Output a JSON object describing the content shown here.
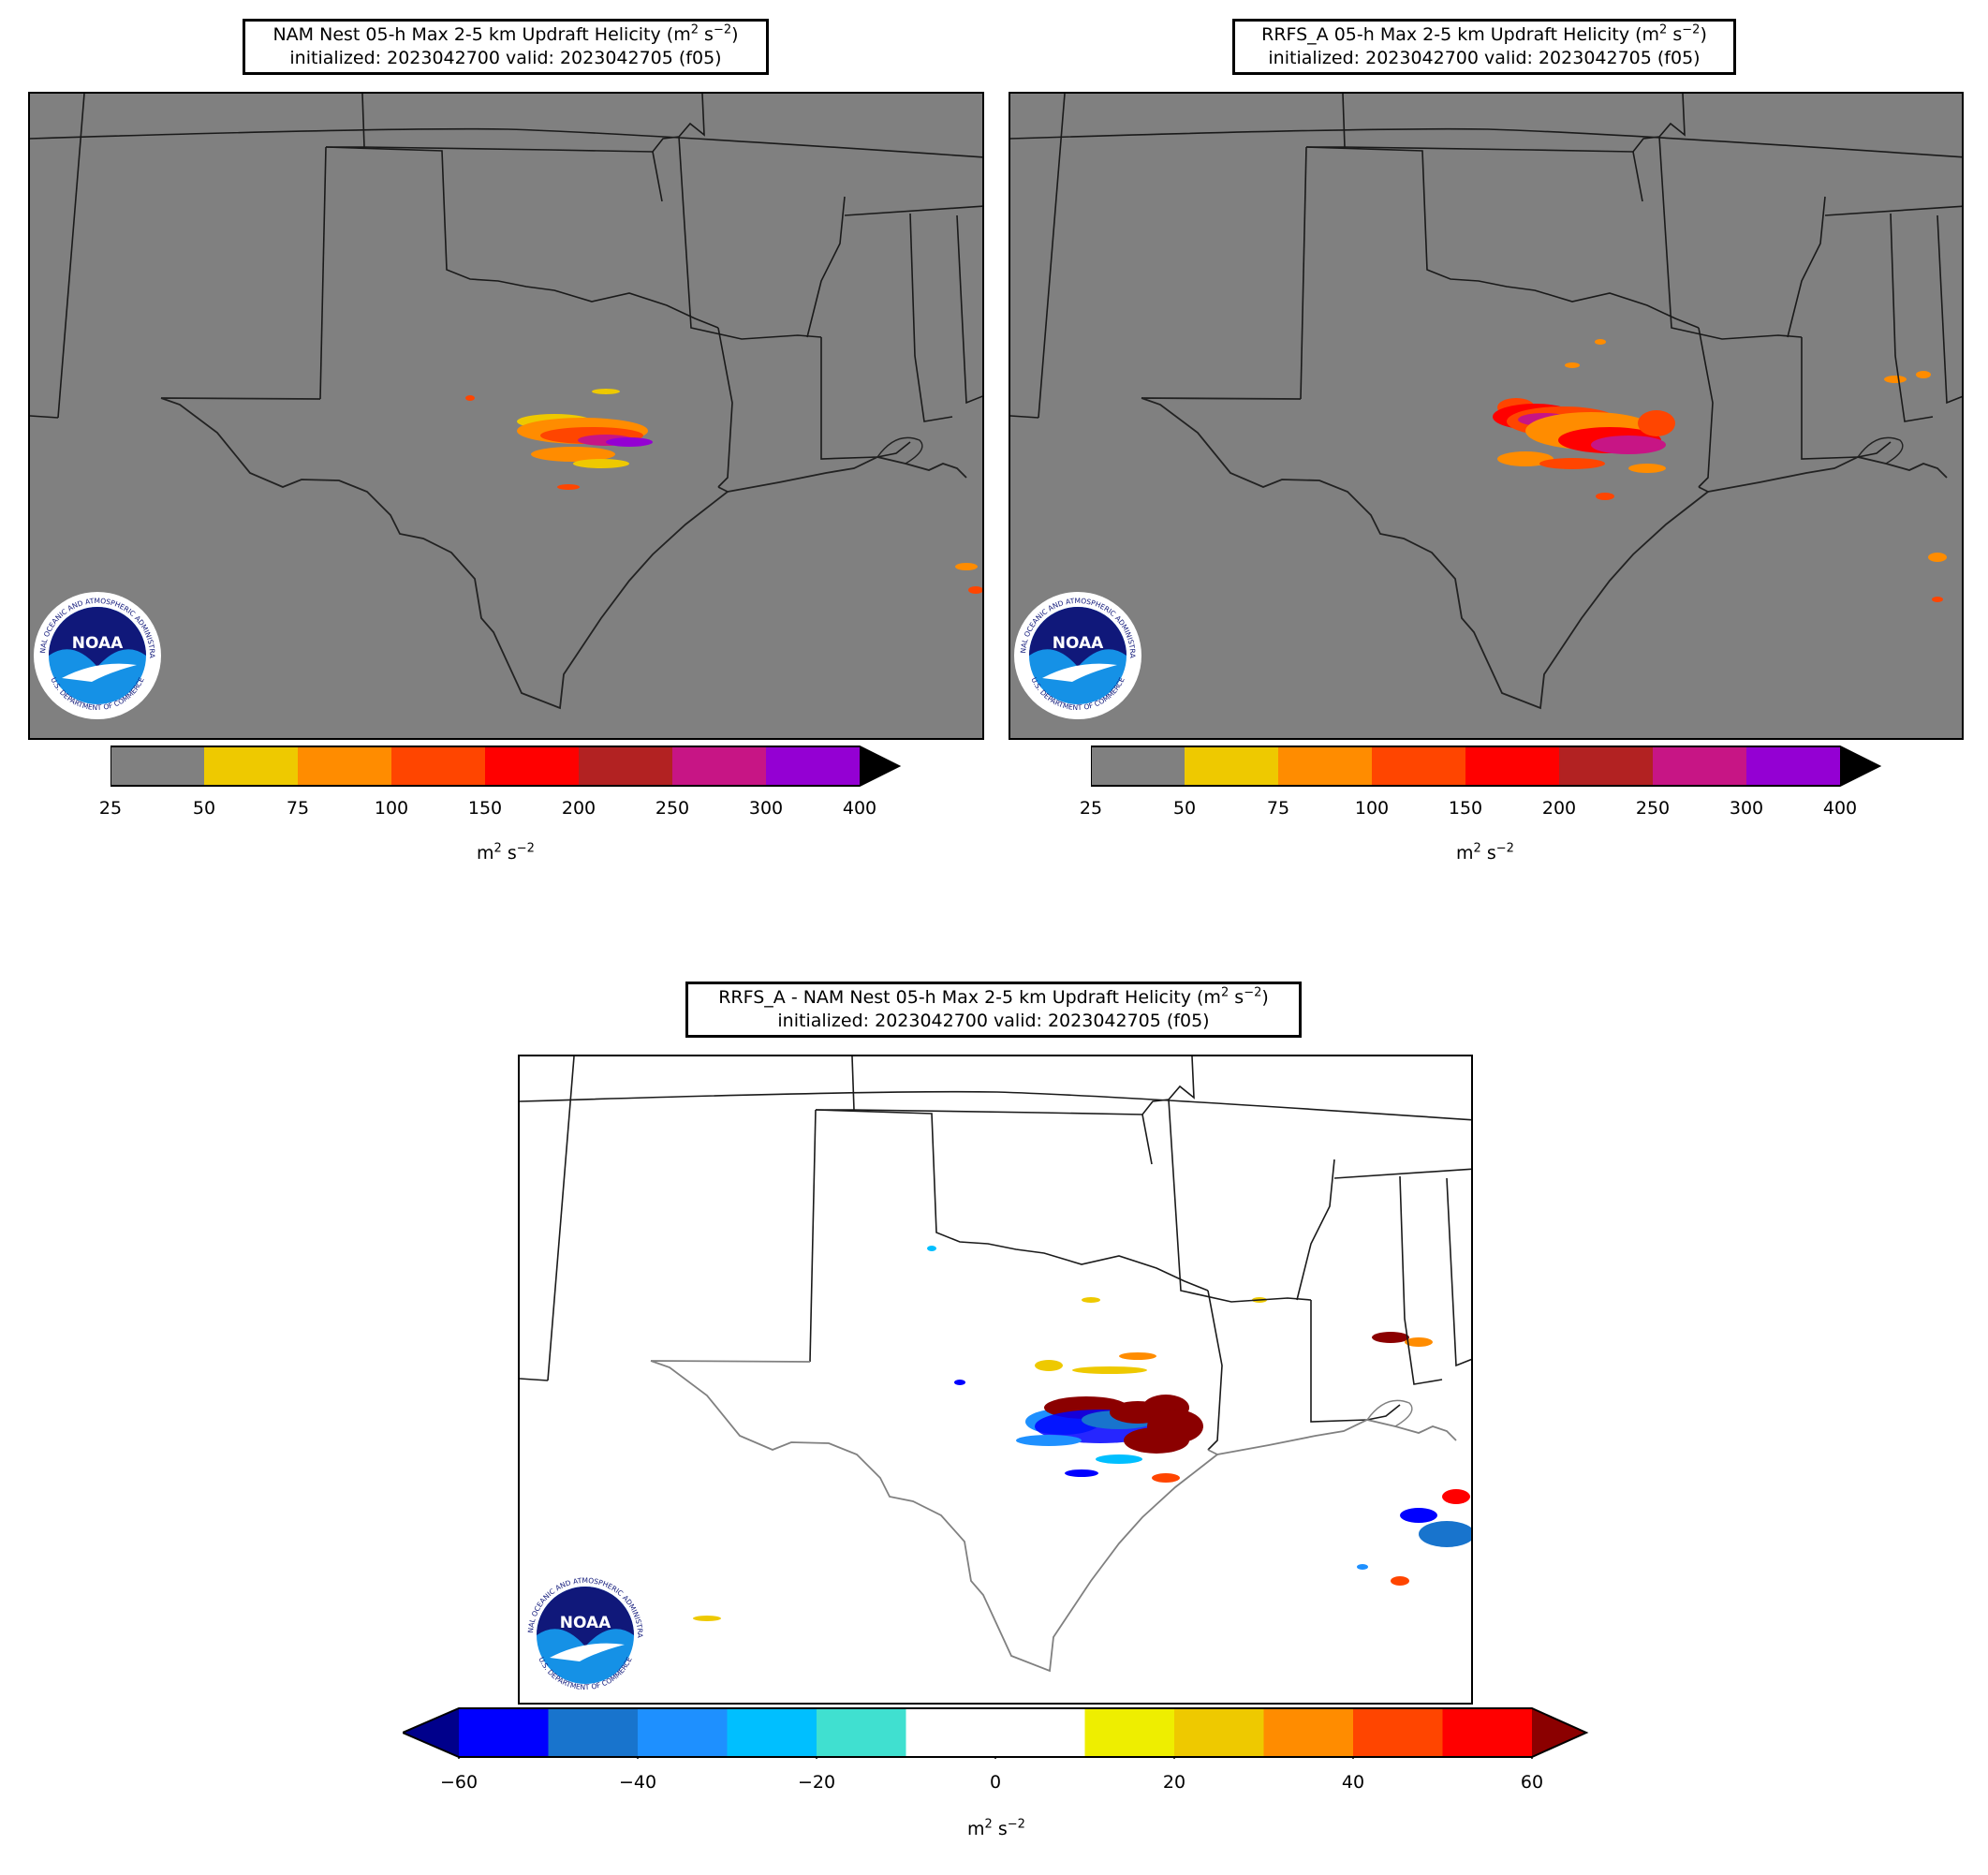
{
  "panels": {
    "nam": {
      "title_main": "NAM Nest 05-h Max 2-5 km Updraft Helicity (m",
      "title_sup1": "2",
      "title_mid": " s",
      "title_sup2": "−2",
      "title_end": ")",
      "subtitle": "initialized: 2023042700 valid: 2023042705 (f05)",
      "background_color": "#808080"
    },
    "rrfs": {
      "title_main": "RRFS_A 05-h Max 2-5 km Updraft Helicity (m",
      "title_sup1": "2",
      "title_mid": " s",
      "title_sup2": "−2",
      "title_end": ")",
      "subtitle": "initialized: 2023042700 valid: 2023042705 (f05)",
      "background_color": "#808080"
    },
    "diff": {
      "title_main": "RRFS_A - NAM Nest 05-h Max 2-5 km Updraft Helicity (m",
      "title_sup1": "2",
      "title_mid": " s",
      "title_sup2": "−2",
      "title_end": ")",
      "subtitle": "initialized: 2023042700 valid: 2023042705 (f05)",
      "background_color": "#ffffff"
    }
  },
  "colorbar_uh": {
    "ticks": [
      "25",
      "50",
      "75",
      "100",
      "150",
      "200",
      "250",
      "300",
      "400"
    ],
    "colors": [
      "#808080",
      "#eec900",
      "#ff8c00",
      "#ff4500",
      "#ff0000",
      "#b22222",
      "#c71585",
      "#9400d3"
    ],
    "extend_color": "#000000",
    "unit_base": "m",
    "unit_sup1": "2",
    "unit_mid": " s",
    "unit_sup2": "−2"
  },
  "colorbar_diff": {
    "ticks": [
      "−60",
      "−40",
      "−20",
      "0",
      "20",
      "40",
      "60"
    ],
    "colors": [
      "#0000ff",
      "#1874cd",
      "#1e90ff",
      "#00bfff",
      "#40e0d0",
      "#ffffff",
      "#ffffff",
      "#eeee00",
      "#eec900",
      "#ff8c00",
      "#ff4500",
      "#ff0000"
    ],
    "extend_low_color": "#00008b",
    "extend_high_color": "#8b0000",
    "unit_base": "m",
    "unit_sup1": "2",
    "unit_mid": " s",
    "unit_sup2": "−2"
  },
  "logo": {
    "text": "NOAA",
    "ring_top": "NATIONAL OCEANIC AND ATMOSPHERIC ADMINISTRATION",
    "ring_bottom": "U.S. DEPARTMENT OF COMMERCE"
  }
}
